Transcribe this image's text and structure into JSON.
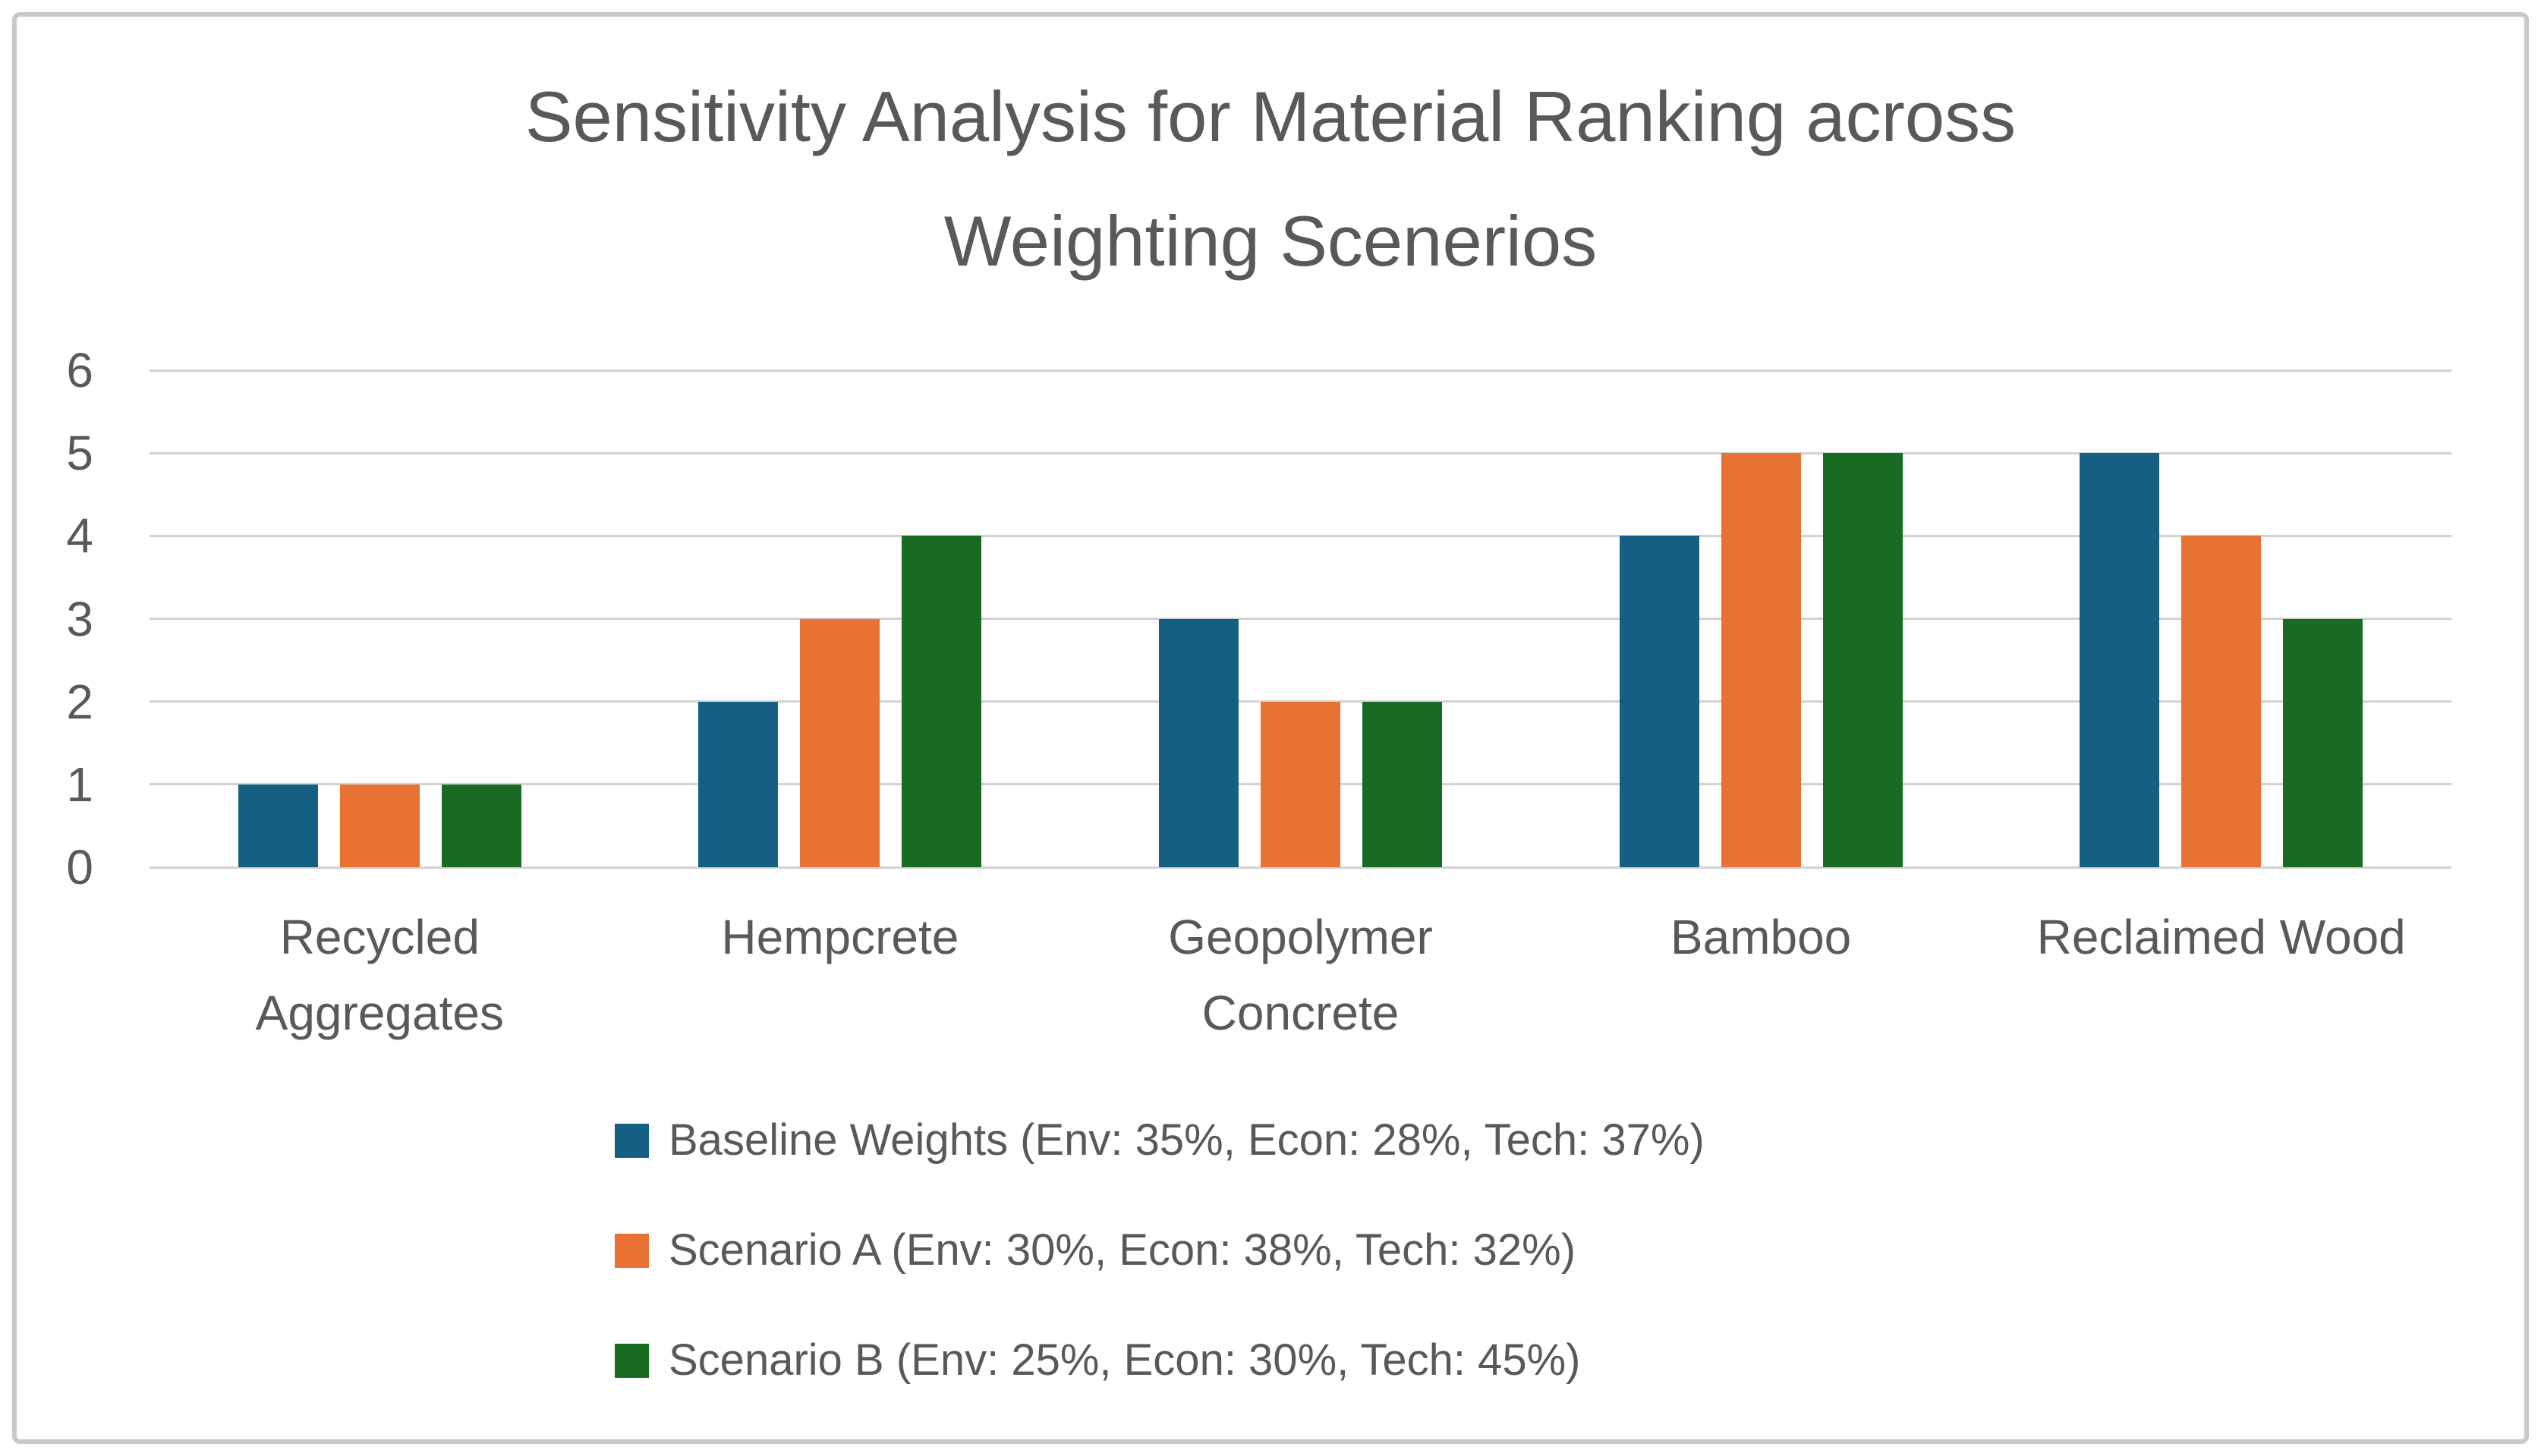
{
  "chart_data": {
    "type": "bar",
    "title": "Sensitivity Analysis for Material Ranking across Weighting Scenerios",
    "title_lines": [
      "Sensitivity Analysis for Material Ranking across",
      "Weighting Scenerios"
    ],
    "categories": [
      "Recycled Aggregates",
      "Hempcrete",
      "Geopolymer Concrete",
      "Bamboo",
      "Reclaimed Wood"
    ],
    "category_label_lines": [
      [
        "Recycled",
        "Aggregates"
      ],
      [
        "Hempcrete"
      ],
      [
        "Geopolymer",
        "Concrete"
      ],
      [
        "Bamboo"
      ],
      [
        "Reclaimed Wood"
      ]
    ],
    "series": [
      {
        "name": "Baseline Weights (Env: 35%, Econ: 28%, Tech: 37%)",
        "color": "#156082",
        "values": [
          1,
          2,
          3,
          4,
          5
        ]
      },
      {
        "name": "Scenario A (Env: 30%, Econ: 38%, Tech: 32%)",
        "color": "#E97132",
        "values": [
          1,
          3,
          2,
          5,
          4
        ]
      },
      {
        "name": "Scenario B (Env: 25%, Econ: 30%, Tech: 45%)",
        "color": "#196B24",
        "values": [
          1,
          4,
          2,
          5,
          3
        ]
      }
    ],
    "xlabel": "",
    "ylabel": "",
    "ylim": [
      0,
      6
    ],
    "yticks": [
      0,
      1,
      2,
      3,
      4,
      5,
      6
    ],
    "grid": true,
    "legend_position": "bottom-left"
  },
  "colors": {
    "text": "#595959",
    "gridline": "#D2D2D2",
    "frame_border": "#C9C9C9",
    "background": "#FFFFFF"
  }
}
